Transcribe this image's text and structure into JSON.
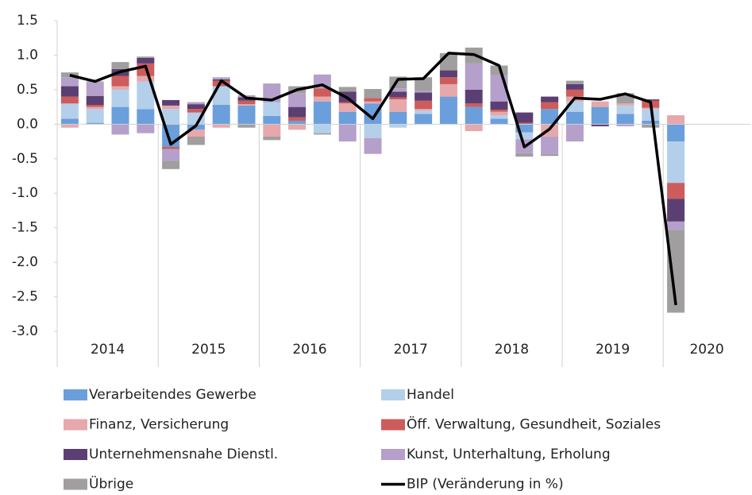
{
  "chart_data": {
    "type": "bar",
    "stacked": true,
    "categories": [
      null,
      null,
      null,
      null,
      null,
      null,
      null,
      null,
      null,
      null,
      null,
      null,
      null,
      null,
      null,
      null,
      null,
      null,
      null,
      null,
      null,
      null,
      null,
      null,
      null,
      null,
      null,
      null
    ],
    "years": [
      "2014",
      "2015",
      "2016",
      "2017",
      "2018",
      "2019",
      "2020"
    ],
    "ylim": [
      -3,
      1.5
    ],
    "yticks": [
      {
        "value": 1.5,
        "label": "1.5"
      },
      {
        "value": 1,
        "label": "1.0"
      },
      {
        "value": 0.5,
        "label": "0.5"
      },
      {
        "value": 0,
        "label": "0.0"
      },
      {
        "value": -0.5,
        "label": "-0.5"
      },
      {
        "value": -1,
        "label": "-1.0"
      },
      {
        "value": -1.5,
        "label": "-1.5"
      },
      {
        "value": -2,
        "label": "-2.0"
      },
      {
        "value": -2.5,
        "label": "-2.5"
      },
      {
        "value": -3,
        "label": "-3.0"
      }
    ],
    "series": [
      {
        "name": "Verarbeitendes Gewerbe",
        "color": "#6a9fdc",
        "values": [
          0.08,
          0.02,
          0.25,
          0.22,
          -0.33,
          -0.08,
          0.28,
          0.27,
          0.12,
          0.05,
          0.33,
          0.18,
          0.3,
          0.18,
          0.15,
          0.4,
          0.25,
          0.08,
          -0.12,
          0.22,
          0.18,
          0.25,
          0.15,
          0.05,
          -0.25,
          null,
          null,
          null
        ]
      },
      {
        "name": "Handel",
        "color": "#b4cfea",
        "values": [
          0.22,
          0.2,
          0.25,
          0.4,
          0.22,
          0.17,
          0.27,
          0.0,
          0.2,
          0.0,
          -0.13,
          0.0,
          -0.2,
          -0.05,
          0.05,
          0.0,
          0.0,
          0.05,
          -0.1,
          0.0,
          0.15,
          0.0,
          0.12,
          0.17,
          -0.6,
          null,
          null,
          null
        ]
      },
      {
        "name": "Finanz, Versicherung",
        "color": "#e6a8ab",
        "values": [
          -0.05,
          0.03,
          0.05,
          0.08,
          0.05,
          -0.1,
          -0.05,
          0.02,
          -0.18,
          -0.08,
          0.07,
          0.12,
          0.03,
          0.18,
          0.02,
          0.18,
          -0.1,
          0.05,
          0.0,
          -0.18,
          0.07,
          0.08,
          0.03,
          0.02,
          0.13,
          null,
          null,
          null
        ]
      },
      {
        "name": "Öff. Verwaltung, Gesundheit, Soziales",
        "color": "#cd5c5c",
        "values": [
          0.1,
          0.03,
          0.15,
          0.18,
          -0.03,
          0.05,
          0.08,
          0.05,
          0.0,
          0.05,
          0.12,
          0.02,
          0.05,
          0.03,
          0.12,
          0.1,
          0.05,
          0.03,
          0.02,
          0.1,
          0.1,
          0.0,
          0.0,
          0.1,
          -0.23,
          null,
          null,
          null
        ]
      },
      {
        "name": "Unternehmensnahe Dienstl.",
        "color": "#5b3f72",
        "values": [
          0.15,
          0.13,
          0.1,
          0.08,
          0.08,
          0.07,
          0.02,
          0.05,
          0.0,
          0.15,
          0.0,
          0.15,
          0.0,
          0.08,
          0.12,
          0.1,
          0.2,
          0.12,
          0.15,
          0.08,
          0.08,
          -0.03,
          0.0,
          0.02,
          -0.33,
          null,
          null,
          null
        ]
      },
      {
        "name": "Kunst, Unterhaltung, Erholung",
        "color": "#b4a0cb",
        "values": [
          0.13,
          0.2,
          -0.15,
          -0.13,
          -0.17,
          0.03,
          0.03,
          0.03,
          0.27,
          0.2,
          0.2,
          -0.25,
          -0.23,
          0.05,
          0.02,
          0.0,
          0.38,
          0.38,
          -0.2,
          -0.25,
          -0.25,
          0.0,
          -0.03,
          0.0,
          -0.12,
          null,
          null,
          null
        ]
      },
      {
        "name": "Übrige",
        "color": "#a09e9e",
        "values": [
          0.07,
          0.01,
          0.1,
          0.02,
          -0.12,
          -0.12,
          0.0,
          -0.05,
          -0.05,
          0.1,
          -0.02,
          0.07,
          0.13,
          0.17,
          0.2,
          0.25,
          0.23,
          0.14,
          -0.05,
          -0.03,
          0.05,
          0.0,
          0.15,
          -0.05,
          -1.2,
          null,
          null,
          null
        ]
      },
      {
        "name": "BIP (Veränderung in %)",
        "color": "#000000",
        "type": "line",
        "values": [
          0.71,
          0.62,
          0.76,
          0.84,
          -0.29,
          -0.02,
          0.63,
          0.38,
          0.35,
          0.5,
          0.57,
          0.38,
          0.08,
          0.65,
          0.66,
          1.03,
          1.01,
          0.85,
          -0.33,
          -0.07,
          0.38,
          0.36,
          0.44,
          0.32,
          -2.62,
          null,
          null,
          null
        ]
      }
    ]
  }
}
